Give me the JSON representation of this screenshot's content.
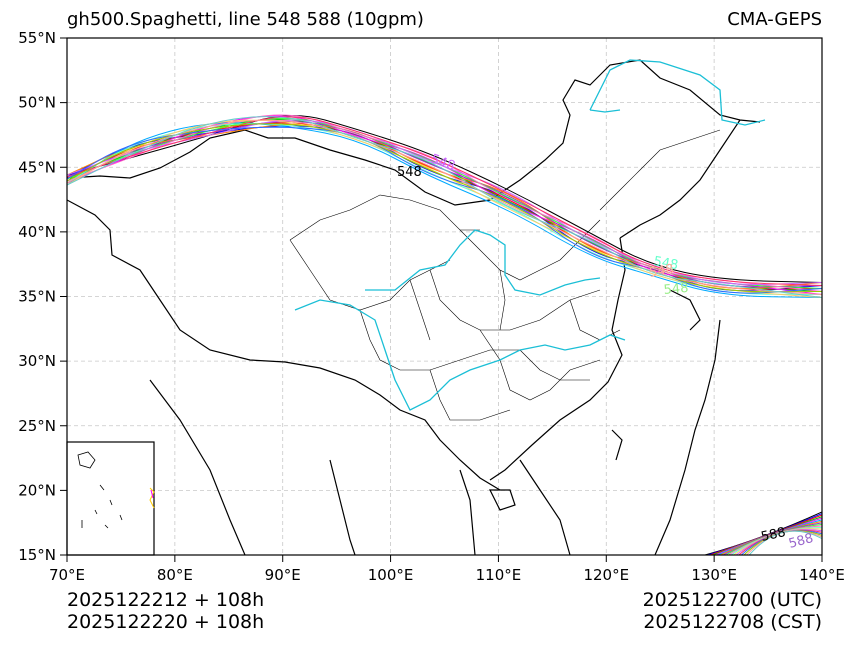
{
  "title": {
    "left": "gh500.Spaghetti, line 548 588 (10gpm)",
    "right": "CMA-GEPS"
  },
  "footer": {
    "init_1": "2025122212 + 108h",
    "init_2": "2025122220 + 108h",
    "valid_utc": "2025122700 (UTC)",
    "valid_cst": "2025122708 (CST)"
  },
  "map": {
    "lon_range": [
      70,
      140
    ],
    "lat_range": [
      15,
      55
    ],
    "lon_ticks": [
      "70°E",
      "80°E",
      "90°E",
      "100°E",
      "110°E",
      "120°E",
      "130°E",
      "140°E"
    ],
    "lat_ticks": [
      "55°N",
      "50°N",
      "45°N",
      "40°N",
      "35°N",
      "30°N",
      "25°N",
      "20°N",
      "15°N"
    ],
    "contour_levels": [
      "548",
      "588"
    ],
    "colors": {
      "coast": "#000000",
      "rivers": "#1bbfd6",
      "grid": "#c8c8c8",
      "members": [
        "#000000",
        "#0000ff",
        "#ff0000",
        "#00cc00",
        "#ff00ff",
        "#00aaff",
        "#ff8800",
        "#9933cc",
        "#33ff33",
        "#ff66cc",
        "#66ffcc",
        "#ffcc66",
        "#cc66ff",
        "#ff3366",
        "#3366ff",
        "#99cc00",
        "#ff9999",
        "#66cccc"
      ]
    }
  }
}
